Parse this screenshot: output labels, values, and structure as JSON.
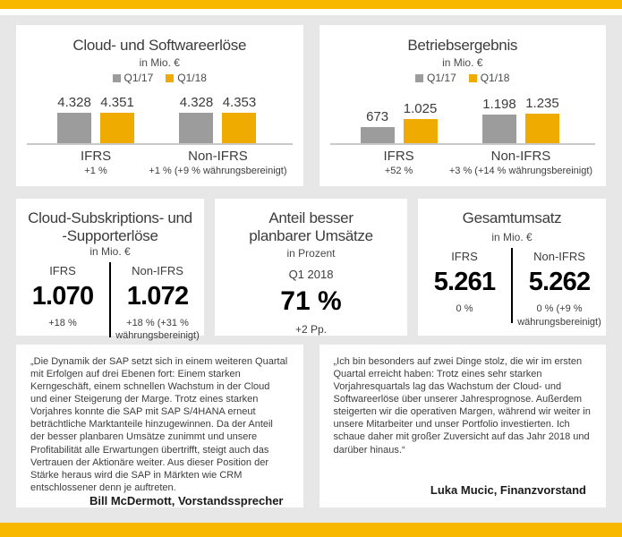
{
  "page": {
    "bg_color": "#E7E7E7",
    "accent_yellow": "#F8B800",
    "bar_gold": "#F0AB00",
    "bar_gray": "#9C9C9C"
  },
  "chart_data": [
    {
      "type": "bar",
      "title": "Cloud- und Softwareerlöse",
      "subtitle": "in Mio. €",
      "legend": [
        {
          "label": "Q1/17",
          "color": "#9C9C9C"
        },
        {
          "label": "Q1/18",
          "color": "#F0AB00"
        }
      ],
      "scale_max": 4353,
      "groups": [
        {
          "name": "IFRS",
          "delta": "+1 %",
          "bars": [
            {
              "series": "Q1/17",
              "label": "4.328",
              "value": 4328
            },
            {
              "series": "Q1/18",
              "label": "4.351",
              "value": 4351
            }
          ]
        },
        {
          "name": "Non-IFRS",
          "delta": "+1 % (+9 % währungsbereinigt)",
          "bars": [
            {
              "series": "Q1/17",
              "label": "4.328",
              "value": 4328
            },
            {
              "series": "Q1/18",
              "label": "4.353",
              "value": 4353
            }
          ]
        }
      ]
    },
    {
      "type": "bar",
      "title": "Betriebsergebnis",
      "subtitle": "in Mio. €",
      "legend": [
        {
          "label": "Q1/17",
          "color": "#9C9C9C"
        },
        {
          "label": "Q1/18",
          "color": "#F0AB00"
        }
      ],
      "scale_max": 1235,
      "groups": [
        {
          "name": "IFRS",
          "delta": "+52 %",
          "bars": [
            {
              "series": "Q1/17",
              "label": "673",
              "value": 673
            },
            {
              "series": "Q1/18",
              "label": "1.025",
              "value": 1025
            }
          ]
        },
        {
          "name": "Non-IFRS",
          "delta": "+3 % (+14 % währungsbereinigt)",
          "bars": [
            {
              "series": "Q1/17",
              "label": "1.198",
              "value": 1198
            },
            {
              "series": "Q1/18",
              "label": "1.235",
              "value": 1235
            }
          ]
        }
      ]
    }
  ],
  "kpis": [
    {
      "title_line1": "Cloud-Subskriptions- und",
      "title_line2": "-Supporterlöse",
      "subtitle": "in Mio. €",
      "columns": [
        {
          "header": "IFRS",
          "value": "1.070",
          "delta": "+18 %"
        },
        {
          "header": "Non-IFRS",
          "value": "1.072",
          "delta": "+18 % (+31 % währungsbereinigt)"
        }
      ]
    },
    {
      "title_line1": "Anteil besser",
      "title_line2": "planbarer Umsätze",
      "subtitle": "in Prozent",
      "period": "Q1 2018",
      "value": "71 %",
      "delta": "+2 Pp."
    },
    {
      "title_line1": "Gesamtumsatz",
      "title_line2": "",
      "subtitle": "in Mio. €",
      "columns": [
        {
          "header": "IFRS",
          "value": "5.261",
          "delta": "0 %"
        },
        {
          "header": "Non-IFRS",
          "value": "5.262",
          "delta": "0 % (+9 % währungsbereinigt)"
        }
      ]
    }
  ],
  "quotes": [
    {
      "text": "„Die Dynamik der SAP setzt sich in einem weiteren Quartal mit Erfolgen auf drei Ebenen fort: Einem starken Kerngeschäft, einem schnellen Wachstum in der Cloud und einer Steigerung der Marge. Trotz eines starken Vorjahres konnte die SAP mit SAP S/4HANA erneut beträchtliche Marktanteile hinzugewinnen. Da der Anteil der besser planbaren Umsätze zunimmt und unsere Profitabilität alle Erwartungen übertrifft, steigt auch das Vertrauen der Aktionäre weiter. Aus dieser Position der Stärke heraus wird die SAP in Märkten wie CRM entschlossener denn je auftreten.",
      "attribution": "Bill McDermott, Vorstandssprecher"
    },
    {
      "text": "„Ich bin besonders auf zwei Dinge stolz, die wir im ersten Quartal erreicht haben: Trotz eines sehr starken Vorjahresquartals lag das Wachstum der Cloud- und Softwareerlöse über unserer Jahresprognose. Außerdem steigerten wir die operativen Margen, während wir weiter in unsere Mitarbeiter und unser Portfolio investierten. Ich schaue daher mit großer Zuversicht auf das Jahr 2018 und darüber hinaus.“",
      "attribution": "Luka Mucic, Finanzvorstand"
    }
  ]
}
